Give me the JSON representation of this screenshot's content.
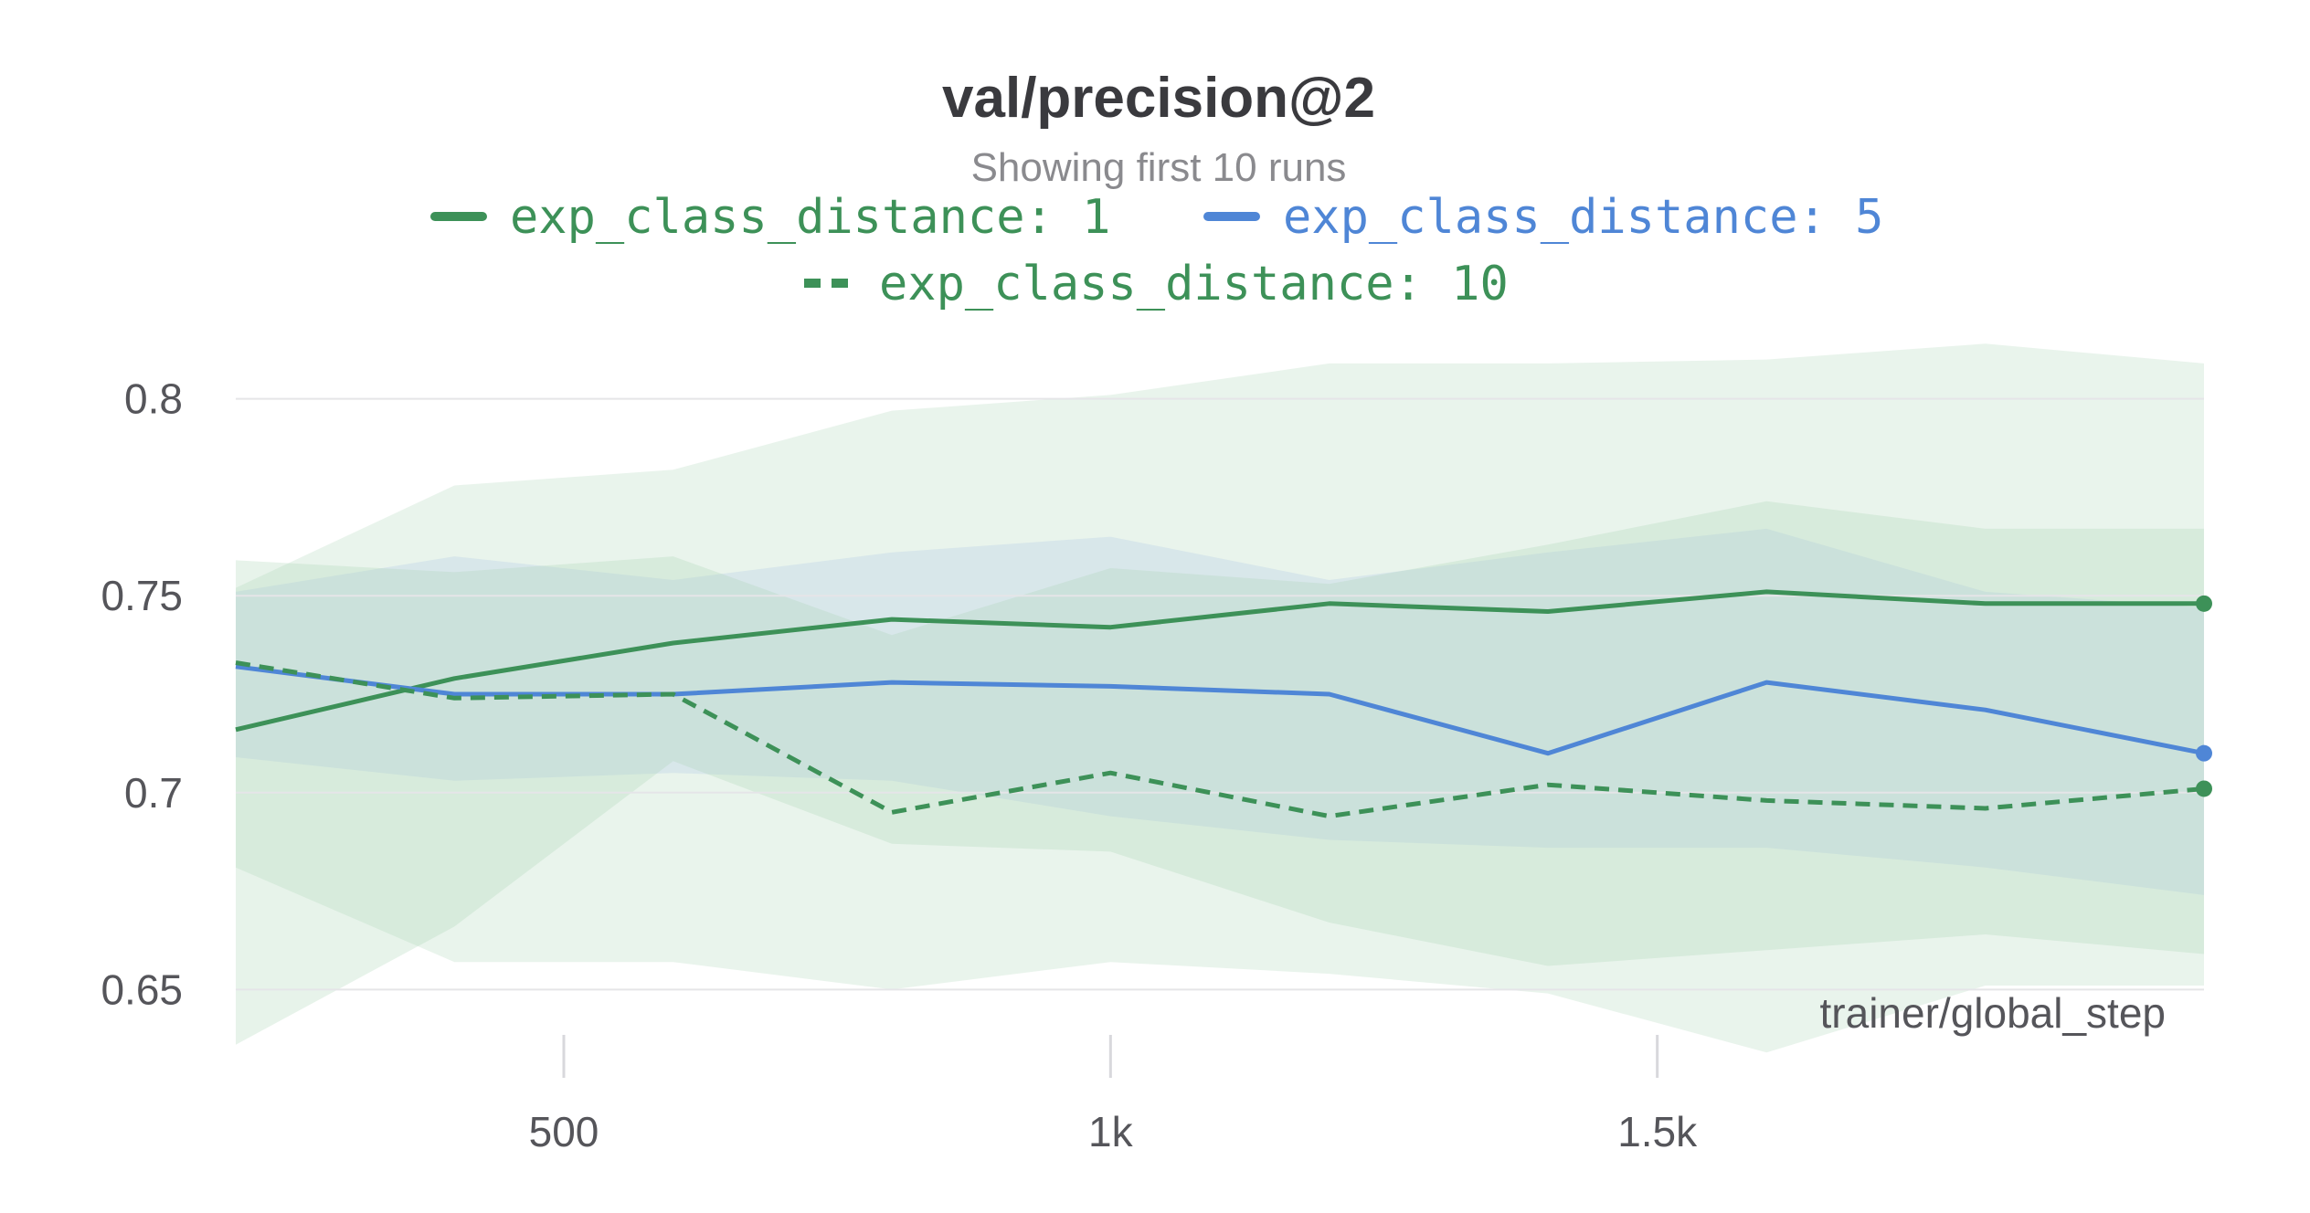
{
  "chart_data": {
    "type": "line",
    "title": "val/precision@2",
    "subtitle": "Showing first 10 runs",
    "xlabel": "trainer/global_step",
    "ylabel": "",
    "x": [
      200,
      400,
      600,
      800,
      1000,
      1200,
      1400,
      1600,
      1800,
      2000
    ],
    "xlim": [
      200,
      2000
    ],
    "ylim": [
      0.635,
      0.815
    ],
    "xticks": [
      500,
      1000,
      1500
    ],
    "xtick_labels": [
      "500",
      "1k",
      "1.5k"
    ],
    "yticks": [
      0.65,
      0.7,
      0.75,
      0.8
    ],
    "ytick_labels": [
      "0.65",
      "0.7",
      "0.75",
      "0.8"
    ],
    "grid": true,
    "legend_position": "top-center",
    "series": [
      {
        "name": "exp_class_distance: 1",
        "color": "#3d9158",
        "dash": "solid",
        "values": [
          0.716,
          0.729,
          0.738,
          0.744,
          0.742,
          0.748,
          0.746,
          0.751,
          0.748,
          0.748
        ],
        "band_upper": [
          0.752,
          0.778,
          0.782,
          0.797,
          0.801,
          0.809,
          0.809,
          0.81,
          0.814,
          0.809
        ],
        "band_lower": [
          0.681,
          0.657,
          0.657,
          0.65,
          0.657,
          0.654,
          0.649,
          0.634,
          0.651,
          0.651
        ]
      },
      {
        "name": "exp_class_distance: 5",
        "color": "#4f86d6",
        "dash": "solid",
        "values": [
          0.732,
          0.725,
          0.725,
          0.728,
          0.727,
          0.725,
          0.71,
          0.728,
          0.721,
          0.71
        ],
        "band_upper": [
          0.751,
          0.76,
          0.754,
          0.761,
          0.765,
          0.754,
          0.761,
          0.767,
          0.751,
          0.747
        ],
        "band_lower": [
          0.709,
          0.703,
          0.705,
          0.703,
          0.694,
          0.688,
          0.686,
          0.686,
          0.681,
          0.674
        ]
      },
      {
        "name": "exp_class_distance: 10",
        "color": "#3d9158",
        "dash": "dashed",
        "values": [
          0.733,
          0.724,
          0.725,
          0.695,
          0.705,
          0.694,
          0.702,
          0.698,
          0.696,
          0.701
        ],
        "band_upper": [
          0.759,
          0.756,
          0.76,
          0.74,
          0.757,
          0.753,
          0.763,
          0.774,
          0.767,
          0.767
        ],
        "band_lower": [
          0.636,
          0.666,
          0.708,
          0.687,
          0.685,
          0.667,
          0.656,
          0.66,
          0.664,
          0.659
        ]
      }
    ]
  },
  "colors": {
    "grid": "#e5e5e8",
    "tick_mark": "#d8d8dc",
    "band_green": "#a8d5b3",
    "band_blue": "#b3cce6"
  }
}
